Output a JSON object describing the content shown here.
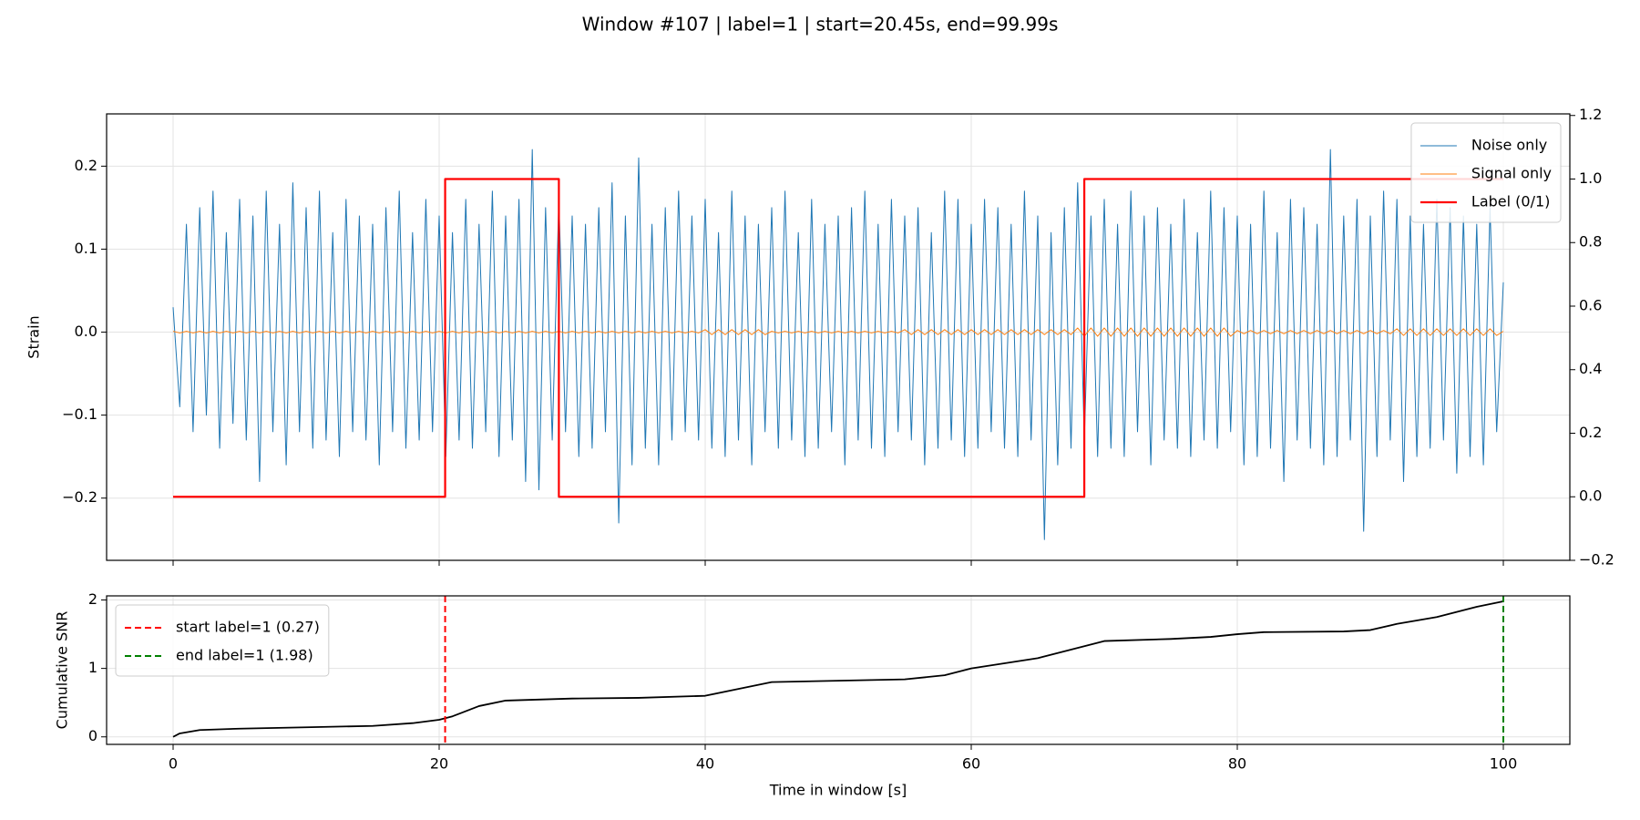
{
  "chart_data": [
    {
      "type": "line",
      "title": "Window #107 | label=1 | start=20.45s, end=99.99s",
      "ylabel": "Strain",
      "xlim": [
        -5,
        105
      ],
      "xticks": [
        0,
        20,
        40,
        60,
        80,
        100
      ],
      "xticklabels": false,
      "ylim": [
        -0.275,
        0.263
      ],
      "yticks": [
        {
          "value": -0.2,
          "label": "−0.2"
        },
        {
          "value": -0.1,
          "label": "−0.1"
        },
        {
          "value": 0,
          "label": "0.0"
        },
        0.1,
        0.2
      ],
      "y2lim": [
        -0.2,
        1.205
      ],
      "y2ticks": [
        {
          "value": -0.2,
          "label": "−0.2"
        },
        {
          "value": 0,
          "label": "0.0"
        },
        0.2,
        0.4,
        0.6,
        0.8,
        {
          "value": 1,
          "label": "1.0"
        },
        1.2
      ],
      "grid": true,
      "legend": "upper right",
      "x": [
        0,
        0.5,
        1,
        1.5,
        2,
        2.5,
        3,
        3.5,
        4,
        4.5,
        5,
        5.5,
        6,
        6.5,
        7,
        7.5,
        8,
        8.5,
        9,
        9.5,
        10,
        10.5,
        11,
        11.5,
        12,
        12.5,
        13,
        13.5,
        14,
        14.5,
        15,
        15.5,
        16,
        16.5,
        17,
        17.5,
        18,
        18.5,
        19,
        19.5,
        20,
        20.5,
        21,
        21.5,
        22,
        22.5,
        23,
        23.5,
        24,
        24.5,
        25,
        25.5,
        26,
        26.5,
        27,
        27.5,
        28,
        28.5,
        29,
        29.5,
        30,
        30.5,
        31,
        31.5,
        32,
        32.5,
        33,
        33.5,
        34,
        34.5,
        35,
        35.5,
        36,
        36.5,
        37,
        37.5,
        38,
        38.5,
        39,
        39.5,
        40,
        40.5,
        41,
        41.5,
        42,
        42.5,
        43,
        43.5,
        44,
        44.5,
        45,
        45.5,
        46,
        46.5,
        47,
        47.5,
        48,
        48.5,
        49,
        49.5,
        50,
        50.5,
        51,
        51.5,
        52,
        52.5,
        53,
        53.5,
        54,
        54.5,
        55,
        55.5,
        56,
        56.5,
        57,
        57.5,
        58,
        58.5,
        59,
        59.5,
        60,
        60.5,
        61,
        61.5,
        62,
        62.5,
        63,
        63.5,
        64,
        64.5,
        65,
        65.5,
        66,
        66.5,
        67,
        67.5,
        68,
        68.5,
        69,
        69.5,
        70,
        70.5,
        71,
        71.5,
        72,
        72.5,
        73,
        73.5,
        74,
        74.5,
        75,
        75.5,
        76,
        76.5,
        77,
        77.5,
        78,
        78.5,
        79,
        79.5,
        80,
        80.5,
        81,
        81.5,
        82,
        82.5,
        83,
        83.5,
        84,
        84.5,
        85,
        85.5,
        86,
        86.5,
        87,
        87.5,
        88,
        88.5,
        89,
        89.5,
        90,
        90.5,
        91,
        91.5,
        92,
        92.5,
        93,
        93.5,
        94,
        94.5,
        95,
        95.5,
        96,
        96.5,
        97,
        97.5,
        98,
        98.5,
        99,
        99.5,
        100
      ],
      "series": [
        {
          "name": "Noise only",
          "color": "#1f77b4",
          "linewidth": 1,
          "values": [
            0.03,
            -0.09,
            0.13,
            -0.12,
            0.15,
            -0.1,
            0.17,
            -0.14,
            0.12,
            -0.11,
            0.16,
            -0.13,
            0.14,
            -0.18,
            0.17,
            -0.12,
            0.13,
            -0.16,
            0.18,
            -0.12,
            0.15,
            -0.14,
            0.17,
            -0.13,
            0.12,
            -0.15,
            0.16,
            -0.12,
            0.14,
            -0.13,
            0.13,
            -0.16,
            0.15,
            -0.12,
            0.17,
            -0.14,
            0.12,
            -0.13,
            0.16,
            -0.12,
            0.14,
            -0.15,
            0.12,
            -0.13,
            0.16,
            -0.14,
            0.13,
            -0.12,
            0.17,
            -0.15,
            0.14,
            -0.13,
            0.16,
            -0.18,
            0.22,
            -0.19,
            0.15,
            -0.13,
            0.16,
            -0.12,
            0.14,
            -0.15,
            0.13,
            -0.14,
            0.15,
            -0.12,
            0.18,
            -0.23,
            0.14,
            -0.16,
            0.21,
            -0.14,
            0.13,
            -0.16,
            0.15,
            -0.13,
            0.17,
            -0.12,
            0.14,
            -0.13,
            0.16,
            -0.14,
            0.12,
            -0.15,
            0.17,
            -0.13,
            0.14,
            -0.16,
            0.13,
            -0.12,
            0.15,
            -0.14,
            0.17,
            -0.13,
            0.12,
            -0.15,
            0.16,
            -0.14,
            0.13,
            -0.12,
            0.14,
            -0.16,
            0.15,
            -0.13,
            0.17,
            -0.14,
            0.13,
            -0.15,
            0.16,
            -0.12,
            0.14,
            -0.13,
            0.15,
            -0.16,
            0.12,
            -0.14,
            0.17,
            -0.13,
            0.16,
            -0.15,
            0.13,
            -0.14,
            0.16,
            -0.12,
            0.15,
            -0.14,
            0.13,
            -0.15,
            0.17,
            -0.13,
            0.14,
            -0.25,
            0.12,
            -0.16,
            0.15,
            -0.14,
            0.18,
            -0.13,
            0.14,
            -0.15,
            0.16,
            -0.14,
            0.13,
            -0.15,
            0.17,
            -0.12,
            0.14,
            -0.16,
            0.15,
            -0.13,
            0.13,
            -0.14,
            0.16,
            -0.15,
            0.12,
            -0.13,
            0.17,
            -0.14,
            0.15,
            -0.12,
            0.14,
            -0.16,
            0.13,
            -0.15,
            0.17,
            -0.14,
            0.12,
            -0.18,
            0.16,
            -0.13,
            0.15,
            -0.14,
            0.13,
            -0.16,
            0.22,
            -0.15,
            0.14,
            -0.13,
            0.16,
            -0.24,
            0.14,
            -0.15,
            0.17,
            -0.13,
            0.16,
            -0.18,
            0.14,
            -0.15,
            0.13,
            -0.14,
            0.16,
            -0.13,
            0.15,
            -0.17,
            0.14,
            -0.15,
            0.13,
            -0.16,
            0.15,
            -0.12,
            0.06
          ]
        },
        {
          "name": "Signal only",
          "color": "#ff7f0e",
          "linewidth": 1,
          "values": [
            0.001,
            -0.001,
            0.001,
            -0.001,
            0.001,
            -0.001,
            0.001,
            -0.001,
            0.001,
            -0.001,
            0.001,
            -0.001,
            0.001,
            -0.001,
            0.001,
            -0.001,
            0.001,
            -0.001,
            0.001,
            -0.001,
            0.001,
            -0.001,
            0.001,
            -0.001,
            0.001,
            -0.001,
            0.001,
            -0.001,
            0.001,
            -0.001,
            0.001,
            -0.001,
            0.001,
            -0.001,
            0.001,
            -0.001,
            0.001,
            -0.001,
            0.001,
            -0.001,
            0.001,
            -0.001,
            0.001,
            -0.001,
            0.001,
            -0.001,
            0.001,
            -0.001,
            0.001,
            -0.001,
            0.001,
            -0.001,
            0.001,
            -0.001,
            0.001,
            -0.001,
            0.001,
            -0.001,
            0.001,
            -0.001,
            0.001,
            -0.001,
            0.001,
            -0.001,
            0.001,
            -0.001,
            0.001,
            -0.001,
            0.001,
            -0.001,
            0.001,
            -0.001,
            0.001,
            -0.001,
            0.001,
            -0.001,
            0.001,
            -0.001,
            0.001,
            -0.001,
            0.003,
            -0.003,
            0.003,
            -0.003,
            0.003,
            -0.003,
            0.003,
            -0.003,
            0.003,
            -0.003,
            0.001,
            -0.001,
            0.001,
            -0.001,
            0.001,
            -0.001,
            0.001,
            -0.001,
            0.001,
            -0.001,
            0.001,
            -0.001,
            0.001,
            -0.001,
            0.001,
            -0.001,
            0.001,
            -0.001,
            0.001,
            -0.001,
            0.003,
            -0.003,
            0.003,
            -0.003,
            0.003,
            -0.003,
            0.003,
            -0.003,
            0.003,
            -0.003,
            0.003,
            -0.003,
            0.003,
            -0.003,
            0.003,
            -0.003,
            0.003,
            -0.003,
            0.003,
            -0.003,
            0.003,
            -0.003,
            0.003,
            -0.003,
            0.003,
            -0.003,
            0.005,
            -0.005,
            0.005,
            -0.005,
            0.005,
            -0.005,
            0.005,
            -0.005,
            0.005,
            -0.005,
            0.005,
            -0.005,
            0.005,
            -0.005,
            0.005,
            -0.005,
            0.005,
            -0.005,
            0.005,
            -0.005,
            0.005,
            -0.005,
            0.005,
            -0.005,
            0.002,
            -0.002,
            0.002,
            -0.002,
            0.002,
            -0.002,
            0.002,
            -0.002,
            0.002,
            -0.002,
            0.002,
            -0.002,
            0.002,
            -0.002,
            0.002,
            -0.002,
            0.002,
            -0.002,
            0.002,
            -0.002,
            0.002,
            -0.002,
            0.002,
            -0.002,
            0.004,
            -0.004,
            0.004,
            -0.004,
            0.004,
            -0.004,
            0.004,
            -0.004,
            0.004,
            -0.004,
            0.004,
            -0.004,
            0.004,
            -0.004,
            0.004,
            -0.004,
            0.001
          ]
        },
        {
          "name": "Label (0/1)",
          "color": "#ff0000",
          "linewidth": 2.2,
          "axis": "y2",
          "x": [
            0,
            20.45,
            20.45,
            29,
            29,
            68.5,
            68.5,
            100
          ],
          "values": [
            0,
            0,
            1,
            1,
            0,
            0,
            1,
            1
          ]
        }
      ]
    },
    {
      "type": "line",
      "xlabel": "Time in window [s]",
      "ylabel": "Cumulative SNR",
      "xlim": [
        -5,
        105
      ],
      "xticks": [
        0,
        20,
        40,
        60,
        80,
        100
      ],
      "ylim": [
        -0.11,
        2.06
      ],
      "yticks": [
        0,
        1,
        2
      ],
      "grid": true,
      "legend": "upper left",
      "series": [
        {
          "color": "#000000",
          "linewidth": 1.8,
          "x": [
            0,
            0.5,
            2,
            5,
            10,
            15,
            18,
            20,
            21,
            23,
            25,
            30,
            35,
            40,
            42,
            45,
            50,
            55,
            58,
            60,
            65,
            68,
            70,
            75,
            78,
            80,
            82,
            88,
            90,
            92,
            95,
            98,
            100
          ],
          "values": [
            0,
            0.05,
            0.1,
            0.12,
            0.14,
            0.16,
            0.2,
            0.25,
            0.3,
            0.45,
            0.53,
            0.56,
            0.57,
            0.6,
            0.68,
            0.8,
            0.82,
            0.84,
            0.9,
            1.0,
            1.15,
            1.3,
            1.4,
            1.43,
            1.46,
            1.5,
            1.53,
            1.54,
            1.56,
            1.65,
            1.75,
            1.9,
            1.98
          ]
        }
      ],
      "vlines": [
        {
          "name": "start label=1 (0.27)",
          "x": 20.45,
          "color": "#ff0000",
          "linestyle": "dashed"
        },
        {
          "name": "end label=1 (1.98)",
          "x": 100,
          "color": "#008000",
          "linestyle": "dashed"
        }
      ]
    }
  ]
}
